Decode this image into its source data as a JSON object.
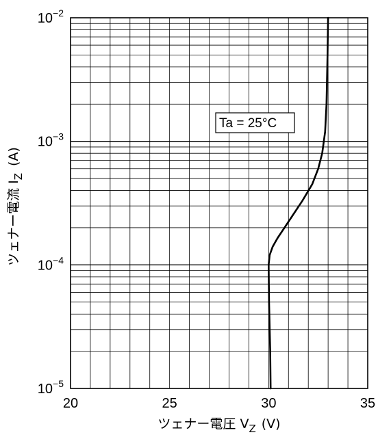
{
  "chart_data": {
    "type": "line",
    "xlabel": "ツェナー電圧 V",
    "xlabel_sub": "Z",
    "xlabel_unit": "(V)",
    "ylabel": "ツェナー電流 I",
    "ylabel_sub": "Z",
    "ylabel_unit": "(A)",
    "annotation": "Ta = 25°C",
    "x_scale": "linear",
    "y_scale": "log",
    "xlim": [
      20,
      35
    ],
    "ylim": [
      1e-05,
      0.01
    ],
    "grid": true,
    "x_ticks": [
      {
        "value": 20,
        "label": "20"
      },
      {
        "value": 25,
        "label": "25"
      },
      {
        "value": 30,
        "label": "30"
      },
      {
        "value": 35,
        "label": "35"
      }
    ],
    "y_ticks": [
      {
        "value": 1e-05,
        "base": "10",
        "exp": "−5"
      },
      {
        "value": 0.0001,
        "base": "10",
        "exp": "−4"
      },
      {
        "value": 0.001,
        "base": "10",
        "exp": "−3"
      },
      {
        "value": 0.01,
        "base": "10",
        "exp": "−2"
      }
    ],
    "series": [
      {
        "x": [
          30.1,
          30.08,
          30.02,
          30.0,
          30.05,
          30.2,
          30.45,
          30.8,
          31.2,
          31.7,
          32.2,
          32.5,
          32.7,
          32.85,
          32.92,
          32.97,
          33.0
        ],
        "y": [
          1e-05,
          2e-05,
          5e-05,
          0.0001,
          0.00012,
          0.00014,
          0.000165,
          0.0002,
          0.00025,
          0.00033,
          0.00045,
          0.0006,
          0.0008,
          0.0012,
          0.002,
          0.005,
          0.01
        ]
      }
    ]
  }
}
